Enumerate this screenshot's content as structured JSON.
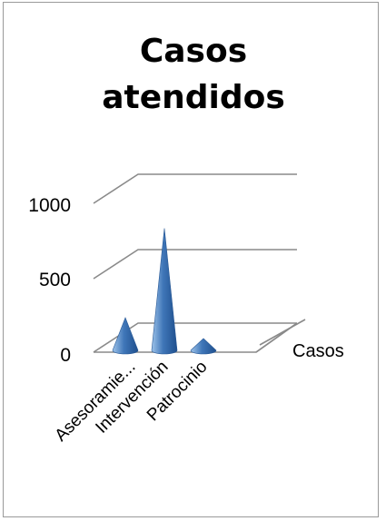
{
  "chart_data": {
    "type": "bar",
    "subtype": "3d-cone",
    "title": "Casos atendidos",
    "title_lines": [
      "Casos",
      "atendidos"
    ],
    "categories": [
      "Asesoramie...",
      "Intervención",
      "Patrocinio"
    ],
    "series": [
      {
        "name": "Casos",
        "values": [
          220,
          820,
          80
        ],
        "color": "#4f81bd"
      }
    ],
    "ylim": [
      0,
      1000
    ],
    "yticks": [
      "0",
      "500",
      "1000"
    ],
    "grid": true,
    "legend": "none"
  }
}
